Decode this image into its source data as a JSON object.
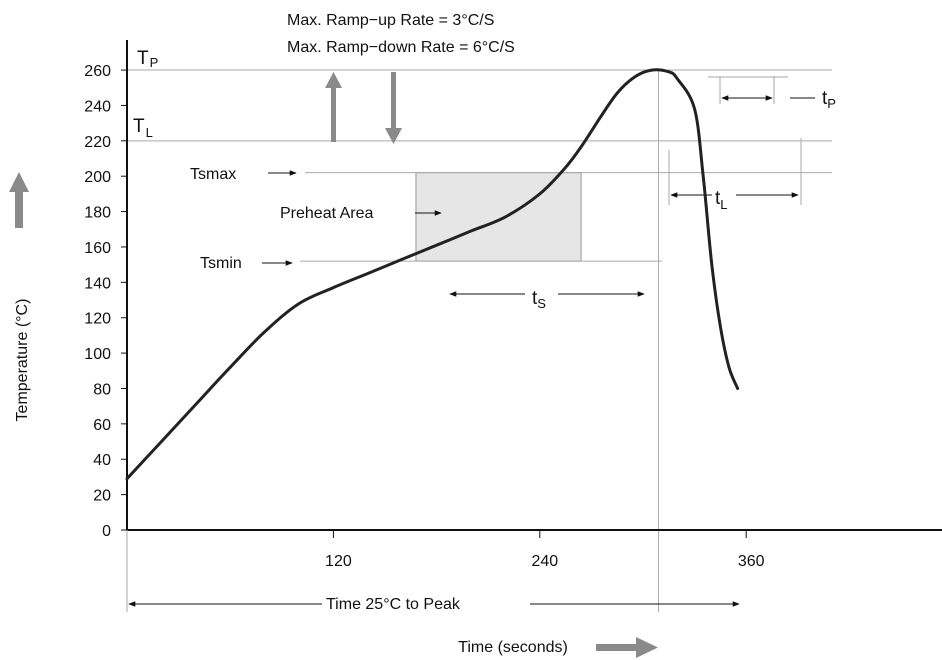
{
  "chart_data": {
    "type": "line",
    "title": "",
    "xlabel": "Time (seconds)",
    "ylabel": "Temperature (°C)",
    "xlim": [
      0,
      380
    ],
    "ylim": [
      0,
      270
    ],
    "xticks": [
      "120",
      "240",
      "360"
    ],
    "xtick_values": [
      120,
      240,
      360
    ],
    "yticks": [
      "0",
      "20",
      "40",
      "60",
      "80",
      "100",
      "120",
      "140",
      "160",
      "180",
      "200",
      "220",
      "240",
      "260"
    ],
    "ytick_values": [
      0,
      20,
      40,
      60,
      80,
      100,
      120,
      140,
      160,
      180,
      200,
      220,
      240,
      260
    ],
    "grid": false,
    "series": [
      {
        "name": "",
        "x": [
          0,
          20,
          40,
          60,
          80,
          100,
          120,
          140,
          160,
          180,
          200,
          220,
          240,
          255,
          265,
          275,
          285,
          295,
          305,
          315,
          320,
          330,
          335,
          340,
          345,
          350,
          355
        ],
        "y": [
          29,
          50,
          71,
          92,
          112,
          128,
          137,
          145,
          153,
          161,
          169,
          177,
          190,
          205,
          218,
          233,
          247,
          256,
          260,
          259,
          255,
          238,
          200,
          150,
          115,
          92,
          80
        ]
      }
    ],
    "reference_lines": {
      "tp_value": 260,
      "tl_value": 220,
      "tsmax_value": 202,
      "tsmin_value": 152,
      "peak_time": 309
    },
    "preheat_area": {
      "x": [
        168,
        264
      ],
      "y": [
        152,
        202
      ]
    },
    "header_lines": [
      "Max. Ramp−up Rate = 3°C/S",
      "Max. Ramp−down Rate = 6°C/S"
    ],
    "annotations": {
      "tp_label": "T",
      "tp_sub": "P",
      "tl_label": "T",
      "tl_sub": "L",
      "tsmax": "Tsmax",
      "tsmin": "Tsmin",
      "preheat": "Preheat Area",
      "ts_label": "t",
      "ts_sub": "S",
      "tl_time_label": "t",
      "tl_time_sub": "L",
      "tp_time_label": "t",
      "tp_time_sub": "P",
      "time_to_peak": "Time 25°C to Peak"
    }
  }
}
